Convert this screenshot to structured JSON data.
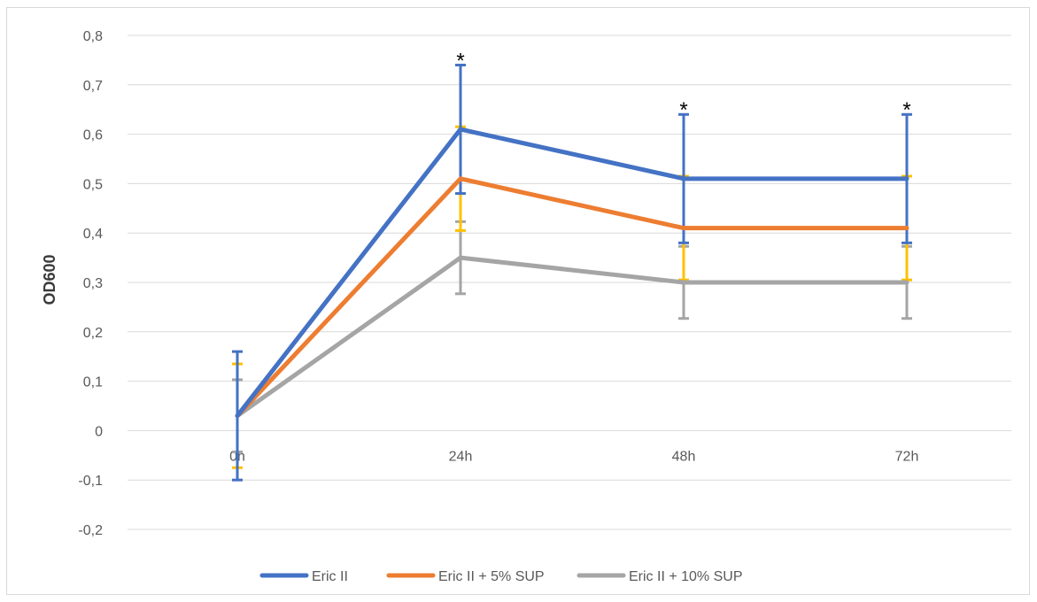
{
  "chart_data": {
    "type": "line",
    "title": "",
    "xlabel": "",
    "ylabel": "OD600",
    "categories": [
      "0h",
      "24h",
      "48h",
      "72h"
    ],
    "ylim": [
      -0.2,
      0.8
    ],
    "ytick_labels": [
      "-0,2",
      "-0,1",
      "0",
      "0,1",
      "0,2",
      "0,3",
      "0,4",
      "0,5",
      "0,6",
      "0,7",
      "0,8"
    ],
    "ytick_values": [
      -0.2,
      -0.1,
      0,
      0.1,
      0.2,
      0.3,
      0.4,
      0.5,
      0.6,
      0.7,
      0.8
    ],
    "grid": "horizontal",
    "legend_position": "bottom",
    "series": [
      {
        "name": "Eric II",
        "color": "#4472c4",
        "error_color": "#4472c4",
        "values": [
          0.03,
          0.61,
          0.51,
          0.51
        ],
        "errors": [
          0.13,
          0.13,
          0.13,
          0.13
        ]
      },
      {
        "name": "Eric II + 5% SUP",
        "color": "#ed7d31",
        "error_color": "#ffc000",
        "values": [
          0.03,
          0.51,
          0.41,
          0.41
        ],
        "errors": [
          0.105,
          0.105,
          0.105,
          0.105
        ]
      },
      {
        "name": "Eric II + 10% SUP",
        "color": "#a5a5a5",
        "error_color": "#a5a5a5",
        "values": [
          0.03,
          0.35,
          0.3,
          0.3
        ],
        "errors": [
          0.073,
          0.073,
          0.073,
          0.073
        ]
      }
    ],
    "annotations": [
      {
        "text": "*",
        "category": "24h",
        "y": 0.76
      },
      {
        "text": "*",
        "category": "48h",
        "y": 0.66
      },
      {
        "text": "*",
        "category": "72h",
        "y": 0.66
      }
    ]
  }
}
